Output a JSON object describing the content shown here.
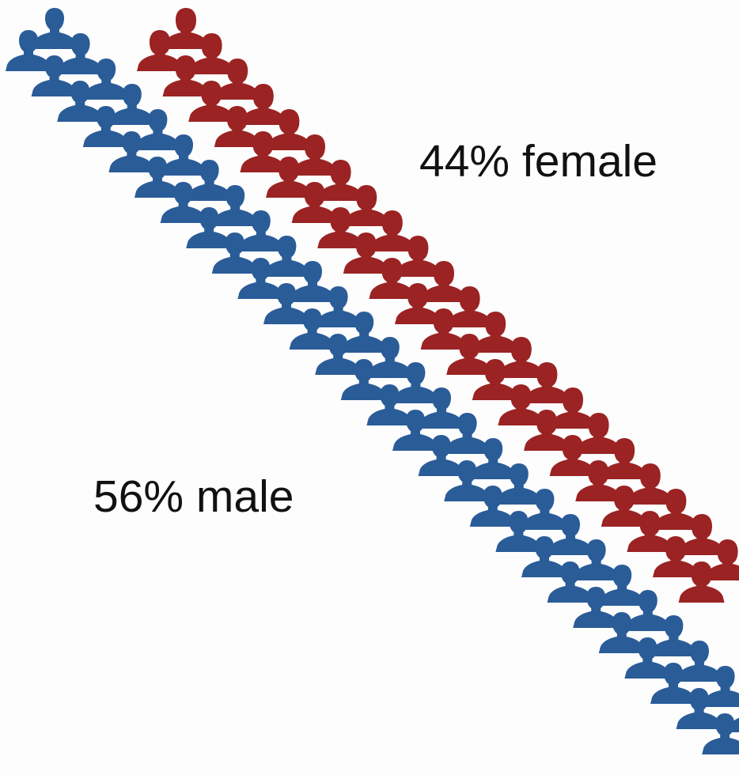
{
  "chart_data": {
    "type": "pictograph",
    "series": [
      {
        "name": "female",
        "percent": 44,
        "label": "44% female",
        "color": "#9b2323",
        "icon": "female-person-icon"
      },
      {
        "name": "male",
        "percent": 56,
        "label": "56% male",
        "color": "#2a5c98",
        "icon": "male-person-icon"
      }
    ]
  }
}
